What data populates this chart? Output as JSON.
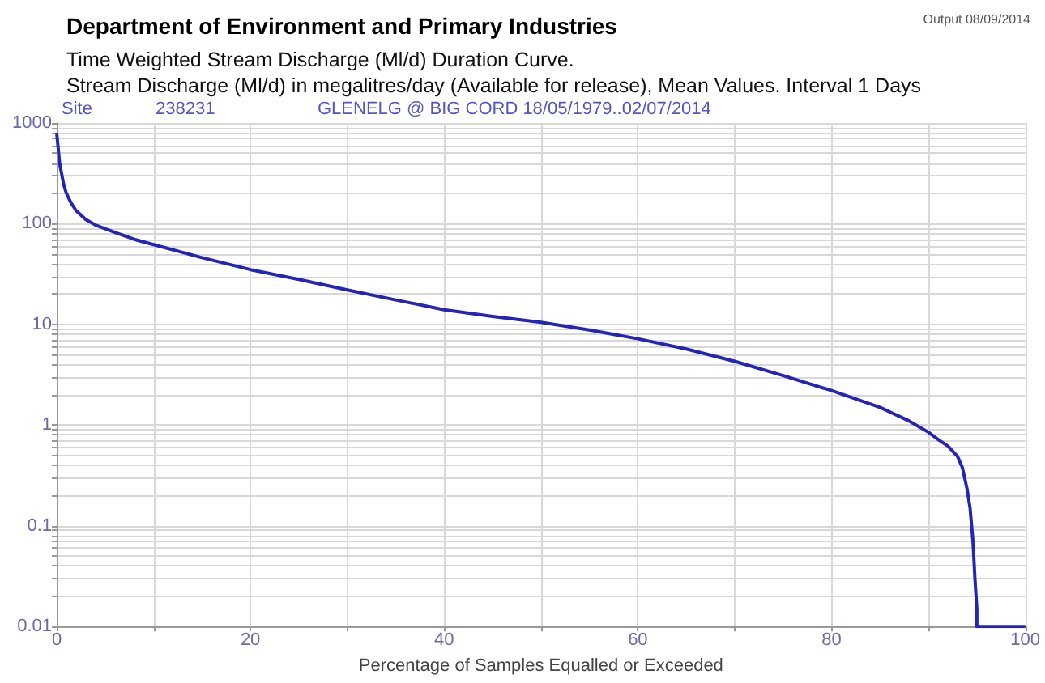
{
  "chart_data": {
    "type": "line",
    "title": "Department of Environment and Primary Industries",
    "subtitle": "Time Weighted Stream Discharge (Ml/d) Duration Curve.\nStream Discharge (Ml/d) in megalitres/day (Available for release), Mean Values. Interval 1 Days",
    "annotations": [
      "Output 08/09/2014",
      "Site",
      "238231",
      "GLENELG @ BIG CORD 18/05/1979..02/07/2014"
    ],
    "xlabel": "Percentage of Samples Equalled or Exceeded",
    "series": [
      {
        "color": "#2424b8",
        "x": [
          0,
          0.3,
          0.7,
          1,
          1.5,
          2,
          3,
          4,
          6,
          8,
          10,
          15,
          20,
          25,
          30,
          35,
          40,
          45,
          50,
          55,
          60,
          65,
          70,
          75,
          80,
          85,
          88,
          90,
          91,
          92,
          93,
          93.5,
          94,
          94.3,
          94.6,
          94.8,
          95,
          95,
          97,
          100
        ],
        "values": [
          800,
          400,
          250,
          200,
          160,
          135,
          110,
          97,
          82,
          70,
          62,
          46,
          35,
          28,
          22,
          17.5,
          14,
          12,
          10.5,
          8.8,
          7.2,
          5.7,
          4.3,
          3.1,
          2.2,
          1.5,
          1.1,
          0.85,
          0.72,
          0.62,
          0.49,
          0.38,
          0.23,
          0.15,
          0.07,
          0.03,
          0.015,
          0.01,
          0.01,
          0.01
        ]
      }
    ],
    "log": "y",
    "marker": "none",
    "line_style": "solid",
    "grid": true,
    "xlim": [
      0,
      100
    ],
    "xticks": [
      0,
      {
        "value": 10,
        "label": null
      },
      20,
      {
        "value": 30,
        "label": null
      },
      40,
      {
        "value": 50,
        "label": null
      },
      60,
      {
        "value": 70,
        "label": null
      },
      80,
      {
        "value": 90,
        "label": null
      },
      100
    ],
    "ylim": [
      0.01,
      1000
    ],
    "yticks": [
      0.01,
      {
        "value": 0.02,
        "label": null
      },
      {
        "value": 0.03,
        "label": null
      },
      {
        "value": 0.04,
        "label": null
      },
      {
        "value": 0.05,
        "label": null
      },
      {
        "value": 0.06,
        "label": null
      },
      {
        "value": 0.07,
        "label": null
      },
      {
        "value": 0.08,
        "label": null
      },
      {
        "value": 0.09,
        "label": null
      },
      0.1,
      {
        "value": 0.2,
        "label": null
      },
      {
        "value": 0.3,
        "label": null
      },
      {
        "value": 0.4,
        "label": null
      },
      {
        "value": 0.5,
        "label": null
      },
      {
        "value": 0.6,
        "label": null
      },
      {
        "value": 0.7,
        "label": null
      },
      {
        "value": 0.8,
        "label": null
      },
      {
        "value": 0.9,
        "label": null
      },
      1,
      {
        "value": 2,
        "label": null
      },
      {
        "value": 3,
        "label": null
      },
      {
        "value": 4,
        "label": null
      },
      {
        "value": 5,
        "label": null
      },
      {
        "value": 6,
        "label": null
      },
      {
        "value": 7,
        "label": null
      },
      {
        "value": 8,
        "label": null
      },
      {
        "value": 9,
        "label": null
      },
      10,
      {
        "value": 20,
        "label": null
      },
      {
        "value": 30,
        "label": null
      },
      {
        "value": 40,
        "label": null
      },
      {
        "value": 50,
        "label": null
      },
      {
        "value": 60,
        "label": null
      },
      {
        "value": 70,
        "label": null
      },
      {
        "value": 80,
        "label": null
      },
      {
        "value": 90,
        "label": null
      },
      100,
      {
        "value": 200,
        "label": null
      },
      {
        "value": 300,
        "label": null
      },
      {
        "value": 400,
        "label": null
      },
      {
        "value": 500,
        "label": null
      },
      {
        "value": 600,
        "label": null
      },
      {
        "value": 700,
        "label": null
      },
      {
        "value": 800,
        "label": null
      },
      {
        "value": 900,
        "label": null
      },
      1000
    ]
  }
}
